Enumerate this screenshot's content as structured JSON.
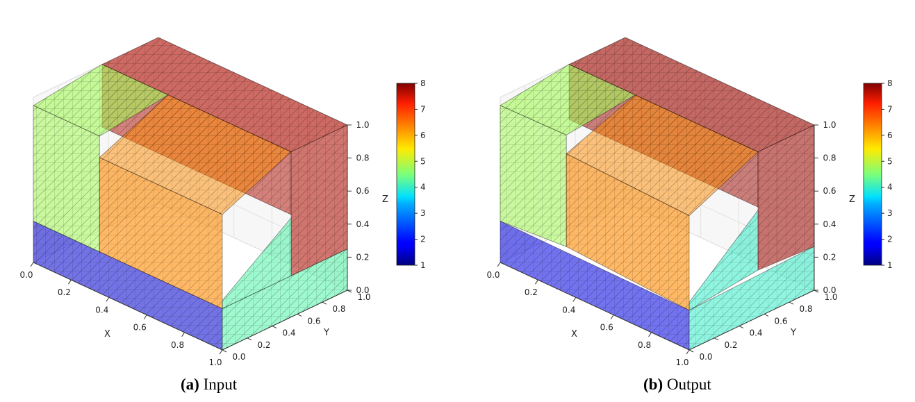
{
  "chart_data": [
    {
      "type": "3d-voxel",
      "panel": "(a)",
      "caption_label": "(a)",
      "caption_text": "Input",
      "xlabel": "X",
      "ylabel": "Y",
      "zlabel": "Z",
      "xlim": [
        0.0,
        1.0
      ],
      "ylim": [
        0.0,
        1.0
      ],
      "zlim": [
        0.0,
        1.0
      ],
      "x_ticks": [
        "0.0",
        "0.2",
        "0.4",
        "0.6",
        "0.8",
        "1.0"
      ],
      "y_ticks": [
        "0.0",
        "0.2",
        "0.4",
        "0.6",
        "0.8",
        "1.0"
      ],
      "z_ticks": [
        "0.0",
        "0.2",
        "0.4",
        "0.6",
        "0.8",
        "1.0"
      ],
      "colorbar": {
        "colormap": "jet",
        "min": 1,
        "max": 8,
        "ticks": [
          "1",
          "2",
          "3",
          "4",
          "5",
          "6",
          "7",
          "8"
        ]
      },
      "deformed": false,
      "regions": [
        {
          "label": "bottom layer",
          "value": 1.5
        },
        {
          "label": "middle-front block",
          "value": 6.3
        },
        {
          "label": "left upper layer",
          "value": 4.8
        },
        {
          "label": "top-back layer",
          "value": 7.7
        },
        {
          "label": "right front layer",
          "value": 4.2
        }
      ]
    },
    {
      "type": "3d-voxel",
      "panel": "(b)",
      "caption_label": "(b)",
      "caption_text": "Output",
      "xlabel": "X",
      "ylabel": "Y",
      "zlabel": "Z",
      "xlim": [
        0.0,
        1.0
      ],
      "ylim": [
        0.0,
        1.0
      ],
      "zlim": [
        0.0,
        1.0
      ],
      "x_ticks": [
        "0.0",
        "0.2",
        "0.4",
        "0.6",
        "0.8",
        "1.0"
      ],
      "y_ticks": [
        "0.0",
        "0.2",
        "0.4",
        "0.6",
        "0.8",
        "1.0"
      ],
      "z_ticks": [
        "0.0",
        "0.2",
        "0.4",
        "0.6",
        "0.8",
        "1.0"
      ],
      "colorbar": {
        "colormap": "jet",
        "min": 1,
        "max": 8,
        "ticks": [
          "1",
          "2",
          "3",
          "4",
          "5",
          "6",
          "7",
          "8"
        ]
      },
      "deformed": true,
      "regions": [
        {
          "label": "bottom layer",
          "value": 1.6
        },
        {
          "label": "middle-front block",
          "value": 6.3
        },
        {
          "label": "left upper layer",
          "value": 4.8
        },
        {
          "label": "top-back layer",
          "value": 7.8
        },
        {
          "label": "right front layer",
          "value": 4.0
        }
      ]
    }
  ]
}
